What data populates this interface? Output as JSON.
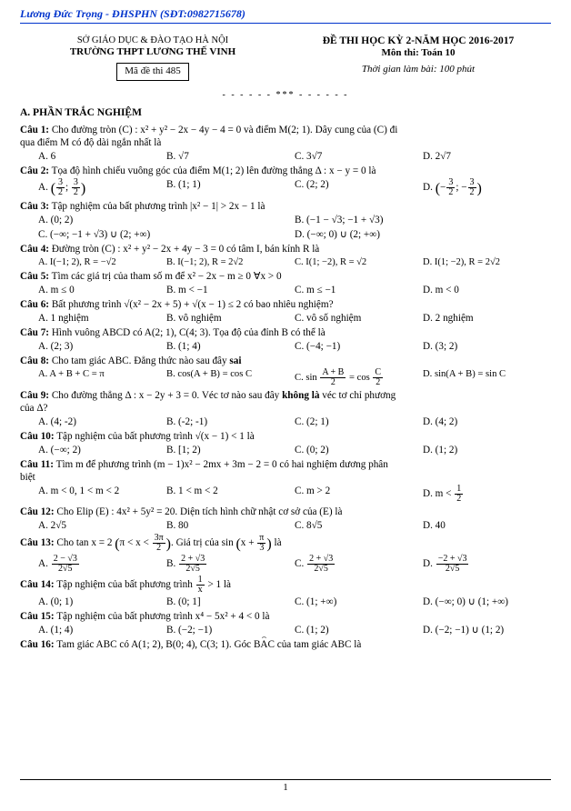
{
  "topbar": "Lương Đức Trọng - ĐHSPHN (SĐT:0982715678)",
  "school": {
    "line1": "SỞ GIÁO DỤC & ĐÀO TẠO HÀ NỘI",
    "line2": "TRƯỜNG THPT LƯƠNG THẾ VINH",
    "code_label": "Mã đề thi 485"
  },
  "exam": {
    "line1": "ĐỀ THI HỌC KỲ 2-NĂM HỌC 2016-2017",
    "line2": "Môn thi: Toán 10",
    "line3": "Thời gian làm bài: 100 phút"
  },
  "separator": "- - - - - - *** - - - - - -",
  "section_a": "A. PHẦN TRẮC NGHIỆM",
  "page_number": "1",
  "q1": {
    "label": "Câu 1:",
    "text_a": "Cho đường tròn (C) : x² + y² − 2x − 4y − 4 = 0 và điểm M(2; 1). Dây cung của (C) đi",
    "text_b": "qua điểm M có độ dài ngắn nhất là",
    "A": "A. 6",
    "B": "B. √7",
    "C": "C. 3√7",
    "D": "D. 2√7"
  },
  "q2": {
    "label": "Câu 2:",
    "text": "Tọa độ hình chiếu vuông góc của điểm M(1; 2) lên đường thẳng Δ : x − y = 0 là",
    "A_pre": "A. ",
    "B": "B. (1; 1)",
    "C": "C. (2; 2)",
    "D_pre": "D. "
  },
  "q3": {
    "label": "Câu 3:",
    "text": "Tập nghiệm của bất phương trình |x² − 1| > 2x − 1 là",
    "A": "A. (0; 2)",
    "B": "B. (−1 − √3; −1 + √3)",
    "C": "C. (−∞; −1 + √3) ∪ (2; +∞)",
    "D": "D. (−∞; 0) ∪ (2; +∞)"
  },
  "q4": {
    "label": "Câu 4:",
    "text": "Đường tròn (C) : x² + y² − 2x + 4y − 3 = 0 có tâm I, bán kính R là",
    "A": "A. I(−1; 2), R = −√2",
    "B": "B. I(−1; 2), R = 2√2",
    "C": "C. I(1; −2), R = √2",
    "D": "D. I(1; −2), R = 2√2"
  },
  "q5": {
    "label": "Câu 5:",
    "text": "Tìm các giá trị của tham số m để x² − 2x − m ≥ 0   ∀x > 0",
    "A": "A. m ≤ 0",
    "B": "B. m < −1",
    "C": "C. m ≤ −1",
    "D": "D. m < 0"
  },
  "q6": {
    "label": "Câu 6:",
    "text": "Bất phương trình √(x² − 2x + 5) + √(x − 1) ≤ 2 có bao nhiêu nghiệm?",
    "A": "A. 1 nghiệm",
    "B": "B. vô nghiệm",
    "C": "C. vô số nghiệm",
    "D": "D. 2 nghiệm"
  },
  "q7": {
    "label": "Câu 7:",
    "text": "Hình vuông ABCD có A(2; 1), C(4; 3). Tọa độ của đỉnh B có thể là",
    "A": "A. (2; 3)",
    "B": "B. (1; 4)",
    "C": "C. (−4; −1)",
    "D": "D. (3; 2)"
  },
  "q8": {
    "label": "Câu 8:",
    "text_a": "Cho tam giác ABC. Đẳng thức nào sau đây ",
    "sai": "sai",
    "A": "A. A + B + C = π",
    "B": "B. cos(A + B) = cos C",
    "C_pre": "C. sin ",
    "C_post": " = cos ",
    "D": "D. sin(A + B) = sin C"
  },
  "q9": {
    "label": "Câu 9:",
    "text_a": "Cho đường thẳng Δ : x − 2y + 3 = 0. Véc tơ nào sau đây ",
    "bold": "không là",
    "text_b": " véc tơ chỉ phương",
    "text_c": "của Δ?",
    "A": "A. (4; -2)",
    "B": "B. (-2; -1)",
    "C": "C. (2; 1)",
    "D": "D. (4; 2)"
  },
  "q10": {
    "label": "Câu 10:",
    "text": "Tập nghiệm của bất phương trình √(x − 1) < 1 là",
    "A": "A. (−∞; 2)",
    "B": "B. [1; 2)",
    "C": "C. (0; 2)",
    "D": "D. (1; 2)"
  },
  "q11": {
    "label": "Câu 11:",
    "text_a": "Tìm m để phương trình (m − 1)x² − 2mx + 3m − 2 = 0 có hai nghiệm dương phân",
    "text_b": "biệt",
    "A": "A. m < 0,  1 < m < 2",
    "B": "B. 1 < m < 2",
    "C": "C. m > 2",
    "D_pre": "D. m < "
  },
  "q12": {
    "label": "Câu 12:",
    "text": "Cho Elip (E) : 4x² + 5y² = 20. Diện tích hình chữ nhật cơ sở của (E) là",
    "A": "A. 2√5",
    "B": "B. 80",
    "C": "C. 8√5",
    "D": "D. 40"
  },
  "q13": {
    "label": "Câu 13:",
    "pre": "Cho tan x = 2    ",
    "mid1": "π < x < ",
    "mid2": ". Giá trị của sin ",
    "mid3": "x + ",
    "post": " là"
  },
  "q14": {
    "label": "Câu 14:",
    "pre": "Tập nghiệm của bất phương trình ",
    "post": " > 1 là",
    "A": "A. (0; 1)",
    "B": "B. (0; 1]",
    "C": "C. (1; +∞)",
    "D": "D. (−∞; 0) ∪ (1; +∞)"
  },
  "q15": {
    "label": "Câu 15:",
    "text": "Tập nghiệm của bất phương trình x⁴ − 5x² + 4 < 0 là",
    "A": "A. (1; 4)",
    "B": "B. (−2; −1)",
    "C": "C. (1; 2)",
    "D": "D. (−2; −1) ∪ (1; 2)"
  },
  "q16": {
    "label": "Câu 16:",
    "pre": "Tam giác ABC có A(1; 2), B(0; 4), C(3; 1). Góc ",
    "bac": "BAC",
    "post": " của tam giác ABC là"
  }
}
